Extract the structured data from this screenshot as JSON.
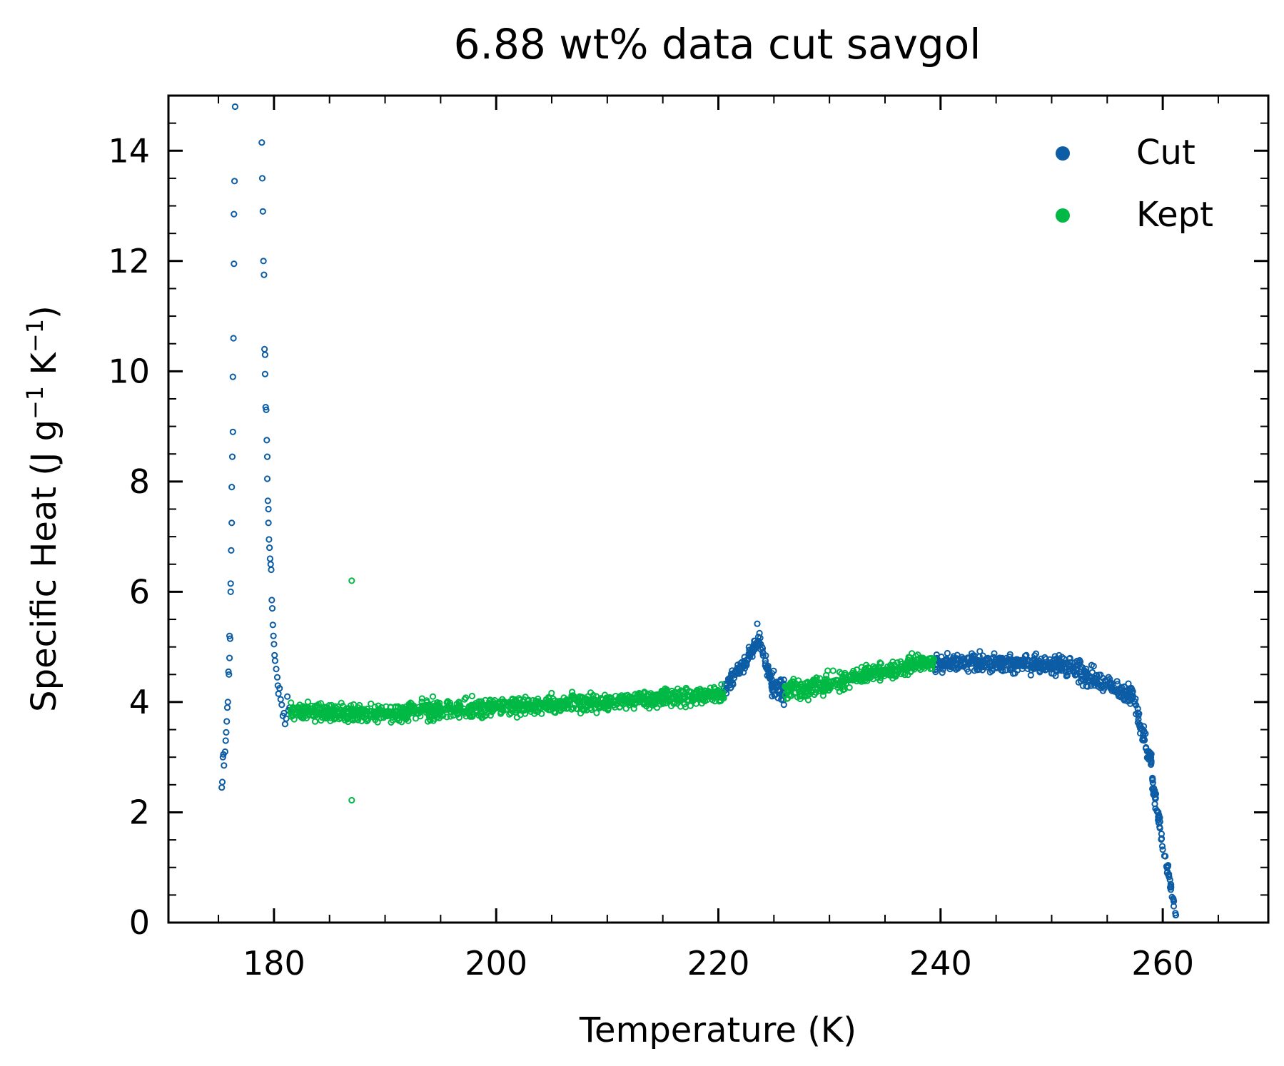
{
  "chart_data": {
    "type": "scatter",
    "title": "6.88 wt% data cut savgol",
    "xlabel": "Temperature (K)",
    "ylabel_main": "Specific Heat (J g",
    "ylabel_exp": "−1",
    "ylabel_mid": " K",
    "ylabel_end": ")",
    "xlim": [
      170.5,
      269.5
    ],
    "ylim": [
      0,
      15
    ],
    "xticks": [
      180,
      200,
      220,
      240,
      260
    ],
    "xtick_labels": [
      "180",
      "200",
      "220",
      "240",
      "260"
    ],
    "yticks": [
      0,
      2,
      4,
      6,
      8,
      10,
      12,
      14
    ],
    "ytick_labels": [
      "0",
      "2",
      "4",
      "6",
      "8",
      "10",
      "12",
      "14"
    ],
    "grid": false,
    "legend_position": "top-right",
    "series": [
      {
        "name": "Cut",
        "color": "#0C5DA5",
        "points": [
          [
            175.3,
            2.45
          ],
          [
            175.35,
            2.55
          ],
          [
            175.4,
            3.0
          ],
          [
            175.45,
            3.05
          ],
          [
            175.5,
            2.85
          ],
          [
            175.6,
            3.1
          ],
          [
            175.65,
            3.3
          ],
          [
            175.7,
            3.45
          ],
          [
            175.75,
            3.65
          ],
          [
            175.8,
            3.9
          ],
          [
            175.85,
            4.0
          ],
          [
            175.9,
            4.55
          ],
          [
            175.95,
            4.5
          ],
          [
            176.0,
            4.8
          ],
          [
            176.0,
            5.2
          ],
          [
            176.05,
            5.15
          ],
          [
            176.1,
            6.0
          ],
          [
            176.1,
            6.15
          ],
          [
            176.15,
            6.75
          ],
          [
            176.2,
            7.25
          ],
          [
            176.2,
            7.9
          ],
          [
            176.25,
            8.45
          ],
          [
            176.3,
            8.9
          ],
          [
            176.3,
            9.9
          ],
          [
            176.35,
            10.6
          ],
          [
            176.4,
            11.95
          ],
          [
            176.4,
            12.85
          ],
          [
            176.45,
            13.45
          ],
          [
            176.5,
            14.8
          ],
          [
            178.9,
            14.15
          ],
          [
            178.95,
            13.5
          ],
          [
            179.0,
            12.9
          ],
          [
            179.05,
            12.0
          ],
          [
            179.1,
            11.75
          ],
          [
            179.15,
            10.4
          ],
          [
            179.2,
            10.3
          ],
          [
            179.2,
            9.95
          ],
          [
            179.25,
            9.35
          ],
          [
            179.3,
            9.3
          ],
          [
            179.35,
            8.75
          ],
          [
            179.4,
            8.45
          ],
          [
            179.4,
            8.05
          ],
          [
            179.45,
            7.65
          ],
          [
            179.5,
            7.5
          ],
          [
            179.5,
            7.25
          ],
          [
            179.55,
            6.95
          ],
          [
            179.6,
            6.8
          ],
          [
            179.65,
            6.6
          ],
          [
            179.7,
            6.5
          ],
          [
            179.75,
            6.4
          ],
          [
            179.8,
            5.85
          ],
          [
            179.85,
            5.7
          ],
          [
            179.9,
            5.4
          ],
          [
            179.95,
            5.2
          ],
          [
            180.0,
            5.05
          ],
          [
            180.05,
            4.85
          ],
          [
            180.1,
            4.75
          ],
          [
            180.2,
            4.6
          ],
          [
            180.3,
            4.45
          ],
          [
            180.35,
            4.3
          ],
          [
            180.4,
            4.15
          ],
          [
            180.5,
            4.25
          ],
          [
            180.6,
            4.05
          ],
          [
            180.7,
            3.95
          ],
          [
            180.8,
            3.75
          ],
          [
            180.9,
            3.8
          ],
          [
            181.0,
            3.6
          ],
          [
            181.1,
            3.7
          ],
          [
            181.2,
            4.1
          ],
          [
            181.3,
            3.85
          ],
          [
            181.4,
            3.9
          ],
          [
            223.5,
            5.42
          ],
          [
            223.7,
            5.25
          ]
        ],
        "bands": [
          {
            "x_range": [
              220.5,
              222.8
            ],
            "y_start": 4.2,
            "y_end": 4.85,
            "spread": 0.28,
            "n": 70
          },
          {
            "x_range": [
              222.8,
              223.8
            ],
            "y_start": 4.85,
            "y_end": 5.2,
            "spread": 0.2,
            "n": 30
          },
          {
            "x_range": [
              223.8,
              224.8
            ],
            "y_start": 5.0,
            "y_end": 4.35,
            "spread": 0.25,
            "n": 30
          },
          {
            "x_range": [
              224.8,
              226.0
            ],
            "y_start": 4.35,
            "y_end": 4.2,
            "spread": 0.45,
            "n": 40
          },
          {
            "x_range": [
              239.5,
              251.0
            ],
            "y_start": 4.72,
            "y_end": 4.68,
            "spread": 0.32,
            "n": 330
          },
          {
            "x_range": [
              251.0,
              257.5
            ],
            "y_start": 4.65,
            "y_end": 4.1,
            "spread": 0.38,
            "n": 180
          },
          {
            "x_range": [
              257.5,
              259.0
            ],
            "y_start": 3.9,
            "y_end": 2.9,
            "spread": 0.3,
            "n": 50
          },
          {
            "x_range": [
              259.0,
              260.5
            ],
            "y_start": 2.6,
            "y_end": 0.9,
            "spread": 0.3,
            "n": 50
          },
          {
            "x_range": [
              260.5,
              261.2
            ],
            "y_start": 0.9,
            "y_end": 0.1,
            "spread": 0.15,
            "n": 20
          }
        ]
      },
      {
        "name": "Kept",
        "color": "#00B945",
        "points": [
          [
            187.0,
            6.2
          ],
          [
            187.0,
            2.22
          ]
        ],
        "bands": [
          {
            "x_range": [
              181.5,
              186.0
            ],
            "y_start": 3.85,
            "y_end": 3.8,
            "spread": 0.3,
            "n": 140
          },
          {
            "x_range": [
              186.0,
              192.0
            ],
            "y_start": 3.8,
            "y_end": 3.8,
            "spread": 0.32,
            "n": 180
          },
          {
            "x_range": [
              192.0,
              200.0
            ],
            "y_start": 3.85,
            "y_end": 3.9,
            "spread": 0.32,
            "n": 240
          },
          {
            "x_range": [
              200.0,
              210.0
            ],
            "y_start": 3.9,
            "y_end": 4.0,
            "spread": 0.3,
            "n": 300
          },
          {
            "x_range": [
              210.0,
              220.5
            ],
            "y_start": 4.0,
            "y_end": 4.15,
            "spread": 0.3,
            "n": 300
          },
          {
            "x_range": [
              226.0,
              232.0
            ],
            "y_start": 4.2,
            "y_end": 4.4,
            "spread": 0.35,
            "n": 170
          },
          {
            "x_range": [
              232.0,
              239.5
            ],
            "y_start": 4.45,
            "y_end": 4.75,
            "spread": 0.3,
            "n": 230
          }
        ]
      }
    ]
  }
}
